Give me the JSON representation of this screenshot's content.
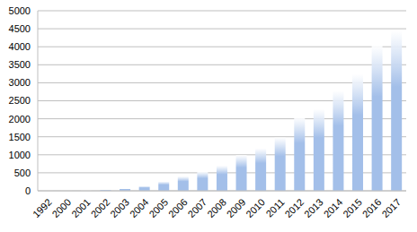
{
  "chart_data": {
    "type": "bar",
    "categories": [
      "1992",
      "2000",
      "2001",
      "2002",
      "2003",
      "2004",
      "2005",
      "2006",
      "2007",
      "2008",
      "2009",
      "2010",
      "2011",
      "2012",
      "2013",
      "2014",
      "2015",
      "2016",
      "2017"
    ],
    "values": [
      2,
      3,
      5,
      20,
      60,
      130,
      260,
      400,
      530,
      700,
      990,
      1180,
      1480,
      2040,
      2270,
      2780,
      3240,
      4030,
      4440
    ],
    "color": "#a3bfe9",
    "ylim": [
      0,
      5000
    ],
    "yticks": [
      0,
      500,
      1000,
      1500,
      2000,
      2500,
      3000,
      3500,
      4000,
      4500,
      5000
    ],
    "grid": true
  }
}
